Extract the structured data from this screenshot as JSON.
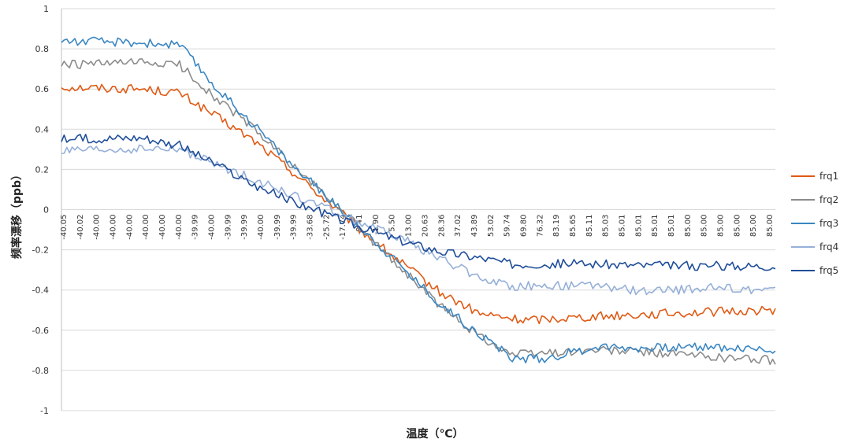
{
  "chart_data": {
    "type": "line",
    "title": "",
    "xlabel": "温度（℃）",
    "ylabel": "频率漂移（ppb）",
    "ylim": [
      -1,
      1
    ],
    "ytick_step": 0.2,
    "ytick_labels": [
      "-1",
      "-0.8",
      "-0.6",
      "-0.4",
      "-0.2",
      "0",
      "0.2",
      "0.4",
      "0.6",
      "0.8",
      "1"
    ],
    "grid": true,
    "legend_position": "right",
    "x_tick_labels": [
      "-40.05",
      "-40.02",
      "-40.00",
      "-40.00",
      "-40.00",
      "-40.00",
      "-40.00",
      "-40.00",
      "-39.99",
      "-40.00",
      "-39.99",
      "-39.99",
      "-40.00",
      "-39.99",
      "-39.99",
      "-33.68",
      "-25.72",
      "-17.74",
      "-9.41",
      "-1.90",
      "5.50",
      "13.00",
      "20.63",
      "28.36",
      "37.02",
      "43.89",
      "53.02",
      "59.74",
      "69.80",
      "76.32",
      "83.19",
      "85.65",
      "85.11",
      "85.03",
      "85.01",
      "85.01",
      "85.01",
      "85.01",
      "85.00",
      "85.00",
      "85.00",
      "85.00",
      "85.00",
      "85.00"
    ],
    "series": [
      {
        "name": "frq1",
        "color": "#e05a14",
        "points": [
          [
            0,
            0.61
          ],
          [
            15,
            0.6
          ],
          [
            22,
            0.58
          ],
          [
            29,
            0.46
          ],
          [
            36,
            0.34
          ],
          [
            43,
            0.19
          ],
          [
            50,
            0.03
          ],
          [
            57,
            -0.13
          ],
          [
            64,
            -0.28
          ],
          [
            71,
            -0.42
          ],
          [
            78,
            -0.52
          ],
          [
            86,
            -0.55
          ],
          [
            100,
            -0.53
          ],
          [
            110,
            -0.52
          ],
          [
            120,
            -0.51
          ],
          [
            133,
            -0.5
          ]
        ]
      },
      {
        "name": "frq2",
        "color": "#8c8c8c",
        "points": [
          [
            0,
            0.72
          ],
          [
            15,
            0.73
          ],
          [
            22,
            0.72
          ],
          [
            29,
            0.55
          ],
          [
            36,
            0.4
          ],
          [
            43,
            0.22
          ],
          [
            50,
            0.05
          ],
          [
            57,
            -0.13
          ],
          [
            64,
            -0.31
          ],
          [
            71,
            -0.49
          ],
          [
            78,
            -0.63
          ],
          [
            84,
            -0.72
          ],
          [
            100,
            -0.7
          ],
          [
            110,
            -0.71
          ],
          [
            120,
            -0.73
          ],
          [
            133,
            -0.75
          ]
        ]
      },
      {
        "name": "frq3",
        "color": "#3a86c2",
        "points": [
          [
            0,
            0.84
          ],
          [
            15,
            0.83
          ],
          [
            22,
            0.82
          ],
          [
            29,
            0.6
          ],
          [
            36,
            0.42
          ],
          [
            43,
            0.22
          ],
          [
            50,
            0.05
          ],
          [
            57,
            -0.12
          ],
          [
            64,
            -0.3
          ],
          [
            71,
            -0.48
          ],
          [
            78,
            -0.62
          ],
          [
            84,
            -0.74
          ],
          [
            90,
            -0.74
          ],
          [
            100,
            -0.68
          ],
          [
            110,
            -0.69
          ],
          [
            120,
            -0.68
          ],
          [
            133,
            -0.7
          ]
        ]
      },
      {
        "name": "frq4",
        "color": "#95b0d8",
        "points": [
          [
            0,
            0.29
          ],
          [
            15,
            0.3
          ],
          [
            22,
            0.3
          ],
          [
            29,
            0.22
          ],
          [
            36,
            0.15
          ],
          [
            43,
            0.07
          ],
          [
            50,
            0.0
          ],
          [
            57,
            -0.08
          ],
          [
            64,
            -0.15
          ],
          [
            71,
            -0.25
          ],
          [
            78,
            -0.34
          ],
          [
            84,
            -0.38
          ],
          [
            100,
            -0.38
          ],
          [
            110,
            -0.41
          ],
          [
            120,
            -0.39
          ],
          [
            133,
            -0.4
          ]
        ]
      },
      {
        "name": "frq5",
        "color": "#1f4e99",
        "points": [
          [
            0,
            0.35
          ],
          [
            15,
            0.36
          ],
          [
            22,
            0.32
          ],
          [
            29,
            0.22
          ],
          [
            36,
            0.12
          ],
          [
            43,
            0.04
          ],
          [
            50,
            -0.03
          ],
          [
            57,
            -0.1
          ],
          [
            64,
            -0.16
          ],
          [
            71,
            -0.21
          ],
          [
            78,
            -0.24
          ],
          [
            84,
            -0.27
          ],
          [
            100,
            -0.27
          ],
          [
            110,
            -0.28
          ],
          [
            120,
            -0.28
          ],
          [
            133,
            -0.28
          ]
        ]
      }
    ]
  }
}
